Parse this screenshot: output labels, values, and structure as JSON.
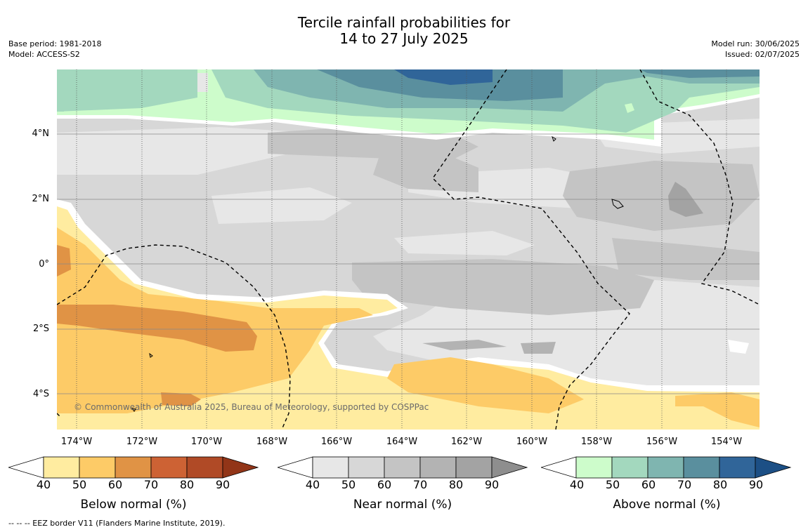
{
  "title": {
    "line1": "Tercile rainfall probabilities for",
    "line2": "14 to 27 July 2025"
  },
  "meta_left": {
    "base_period": "Base period: 1981-2018",
    "model": "Model: ACCESS-S2"
  },
  "meta_right": {
    "model_run": "Model run: 30/06/2025",
    "issued": "Issued: 02/07/2025"
  },
  "map": {
    "copyright": "© Commonwealth of Australia 2025, Bureau of Meteorology, supported by COSPPac",
    "y_labels": [
      "4°N",
      "2°N",
      "0°",
      "2°S",
      "4°S"
    ],
    "x_labels": [
      "174°W",
      "172°W",
      "170°W",
      "168°W",
      "166°W",
      "164°W",
      "162°W",
      "160°W",
      "158°W",
      "156°W",
      "154°W"
    ]
  },
  "colorbars": [
    {
      "name": "below",
      "title": "Below normal (%)",
      "ticks": [
        "40",
        "50",
        "60",
        "70",
        "80",
        "90"
      ],
      "colors": [
        "#ffffff",
        "#ffeca0",
        "#fdcb67",
        "#e09345",
        "#cd6234",
        "#b04a26",
        "#923518"
      ]
    },
    {
      "name": "near",
      "title": "Near normal (%)",
      "ticks": [
        "40",
        "50",
        "60",
        "70",
        "80",
        "90"
      ],
      "colors": [
        "#ffffff",
        "#e7e7e7",
        "#d7d7d7",
        "#c4c4c4",
        "#b3b3b3",
        "#a3a3a3",
        "#8e8e8e"
      ]
    },
    {
      "name": "above",
      "title": "Above normal (%)",
      "ticks": [
        "40",
        "50",
        "60",
        "70",
        "80",
        "90"
      ],
      "colors": [
        "#ffffff",
        "#cdfccb",
        "#a3d8be",
        "#7fb5b0",
        "#5a8f9e",
        "#306599",
        "#1c4f85"
      ]
    }
  ],
  "footnote": "--  --  -- EEZ border V11 (Flanders Marine Institute, 2019)."
}
